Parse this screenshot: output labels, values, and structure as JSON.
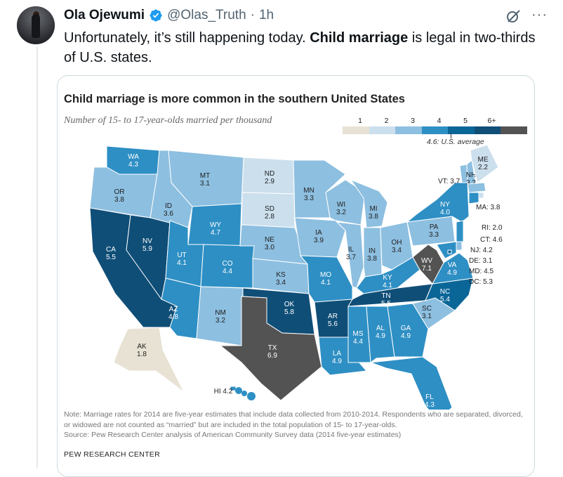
{
  "author": {
    "name": "Ola Ojewumi",
    "handle": "@Olas_Truth",
    "separator": "·",
    "time": "1h"
  },
  "tweet": {
    "text_1": "Unfortunately, it’s still happening today. ",
    "text_bold": "Child marriage",
    "text_2": " is legal in two-thirds of U.S. states."
  },
  "icons": {
    "verified": "verified-badge-icon",
    "grok": "grok-icon",
    "more": "more-icon"
  },
  "colors": {
    "x_blue": "#1d9bf0",
    "c1": "#e7e2d3",
    "c2": "#ccdfed",
    "c3": "#8dbfe0",
    "c4": "#2e8fc4",
    "c5": "#0b6698",
    "c6": "#0f4e77",
    "c7": "#535353"
  },
  "chart_data": {
    "type": "map",
    "title": "Child marriage is more common in the southern United States",
    "subtitle": "Number of 15- to 17-year-olds married per thousand",
    "legend": {
      "ticks": [
        "1",
        "2",
        "3",
        "4",
        "5",
        "6+"
      ],
      "note": "4.6: U.S. average"
    },
    "states": [
      {
        "abbr": "WA",
        "value": "4.3"
      },
      {
        "abbr": "OR",
        "value": "3.8"
      },
      {
        "abbr": "CA",
        "value": "5.5"
      },
      {
        "abbr": "NV",
        "value": "5.9"
      },
      {
        "abbr": "ID",
        "value": "3.6"
      },
      {
        "abbr": "MT",
        "value": "3.1"
      },
      {
        "abbr": "WY",
        "value": "4.7"
      },
      {
        "abbr": "UT",
        "value": "4.1"
      },
      {
        "abbr": "AZ",
        "value": "4.8"
      },
      {
        "abbr": "CO",
        "value": "4.4"
      },
      {
        "abbr": "NM",
        "value": "3.2"
      },
      {
        "abbr": "ND",
        "value": "2.9"
      },
      {
        "abbr": "SD",
        "value": "2.8"
      },
      {
        "abbr": "NE",
        "value": "3.0"
      },
      {
        "abbr": "KS",
        "value": "3.4"
      },
      {
        "abbr": "OK",
        "value": "5.8"
      },
      {
        "abbr": "TX",
        "value": "6.9"
      },
      {
        "abbr": "MN",
        "value": "3.3"
      },
      {
        "abbr": "IA",
        "value": "3.9"
      },
      {
        "abbr": "MO",
        "value": "4.1"
      },
      {
        "abbr": "AR",
        "value": "5.6"
      },
      {
        "abbr": "LA",
        "value": "4.9"
      },
      {
        "abbr": "WI",
        "value": "3.2"
      },
      {
        "abbr": "IL",
        "value": "3.7"
      },
      {
        "abbr": "MI",
        "value": "3.8"
      },
      {
        "abbr": "IN",
        "value": "3.8"
      },
      {
        "abbr": "OH",
        "value": "3.4"
      },
      {
        "abbr": "KY",
        "value": "4.1"
      },
      {
        "abbr": "TN",
        "value": "5.5"
      },
      {
        "abbr": "MS",
        "value": "4.4"
      },
      {
        "abbr": "AL",
        "value": "4.9"
      },
      {
        "abbr": "GA",
        "value": "4.9"
      },
      {
        "abbr": "FL",
        "value": "4.3"
      },
      {
        "abbr": "SC",
        "value": "3.1"
      },
      {
        "abbr": "NC",
        "value": "5.4"
      },
      {
        "abbr": "VA",
        "value": "4.9"
      },
      {
        "abbr": "WV",
        "value": "7.1"
      },
      {
        "abbr": "PA",
        "value": "3.3"
      },
      {
        "abbr": "NY",
        "value": "4.0"
      },
      {
        "abbr": "VT",
        "value": "3.7"
      },
      {
        "abbr": "NH",
        "value": "3.2"
      },
      {
        "abbr": "ME",
        "value": "2.2"
      },
      {
        "abbr": "MA",
        "value": "3.8"
      },
      {
        "abbr": "RI",
        "value": "2.0"
      },
      {
        "abbr": "CT",
        "value": "4.6"
      },
      {
        "abbr": "NJ",
        "value": "4.2"
      },
      {
        "abbr": "DE",
        "value": "3.1"
      },
      {
        "abbr": "MD",
        "value": "4.5"
      },
      {
        "abbr": "DC",
        "value": "5.3"
      },
      {
        "abbr": "AK",
        "value": "1.8"
      },
      {
        "abbr": "HI",
        "value": "4.2"
      }
    ],
    "note": "Note: Marriage rates for 2014 are five-year estimates that include data collected from 2010-2014. Respondents who are separated, divorced, or widowed are not counted as “married” but are included in the total population of 15- to 17-year-olds.",
    "source": "Source: Pew Research Center analysis of American Community Survey data (2014 five-year estimates)",
    "org": "PEW RESEARCH CENTER"
  }
}
